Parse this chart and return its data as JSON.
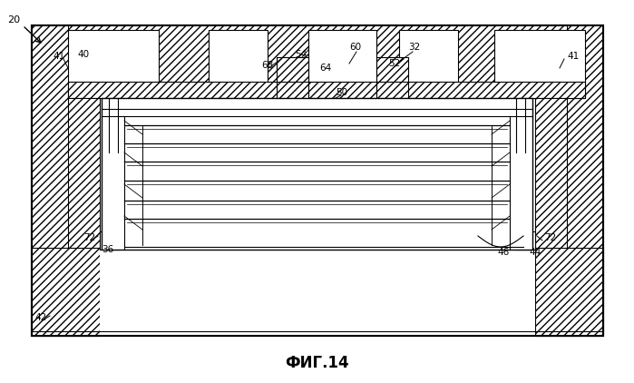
{
  "title": "ФИГ.14",
  "title_fontsize": 12,
  "bg_color": "#ffffff",
  "line_color": "#000000",
  "fig_width": 6.99,
  "fig_height": 4.22
}
